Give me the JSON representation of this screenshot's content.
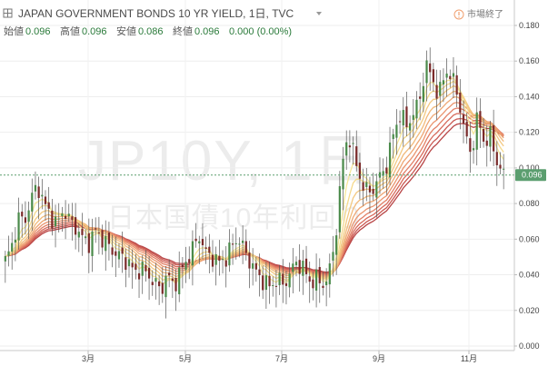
{
  "header": {
    "symbol_title": "JAPAN GOVERNMENT BONDS 10 YR YIELD, 1日, TVC",
    "dropdown_icon": "caret-down-icon",
    "collapse_icon": "grid-square-icon",
    "ohlc": [
      {
        "label": "始値",
        "value": "0.096"
      },
      {
        "label": "高値",
        "value": "0.096"
      },
      {
        "label": "安値",
        "value": "0.086"
      },
      {
        "label": "終値",
        "value": "0.096"
      }
    ],
    "change": "0.000 (0.00%)",
    "market_status": "市場終了",
    "status_icon": "exclamation-circle-icon",
    "status_color": "#f0a070",
    "positive_color": "#2a7a3a"
  },
  "watermark": {
    "symbol": "JP10Y, 1日",
    "description": "日本国債10年利回り"
  },
  "chart_data": {
    "type": "candlestick",
    "xlabels": [
      "3月",
      "5月",
      "7月",
      "9月",
      "11月"
    ],
    "yticks": [
      "0.180",
      "0.160",
      "0.140",
      "0.120",
      "0.100",
      "0.080",
      "0.060",
      "0.040",
      "0.020",
      "0.000"
    ],
    "ylim": [
      0.0,
      0.18
    ],
    "last_price": "0.096",
    "last_price_color": "#5b9e6f",
    "up_color": "#4a8a4a",
    "down_color": "#7a2a2a",
    "closes": [
      0.048,
      0.056,
      0.072,
      0.07,
      0.083,
      0.09,
      0.08,
      0.073,
      0.068,
      0.077,
      0.07,
      0.066,
      0.06,
      0.058,
      0.065,
      0.06,
      0.056,
      0.052,
      0.05,
      0.047,
      0.041,
      0.044,
      0.04,
      0.036,
      0.031,
      0.04,
      0.034,
      0.041,
      0.048,
      0.055,
      0.062,
      0.052,
      0.05,
      0.047,
      0.049,
      0.056,
      0.061,
      0.053,
      0.046,
      0.04,
      0.036,
      0.033,
      0.038,
      0.034,
      0.041,
      0.047,
      0.044,
      0.036,
      0.038,
      0.034,
      0.04,
      0.06,
      0.1,
      0.12,
      0.105,
      0.092,
      0.086,
      0.089,
      0.096,
      0.102,
      0.12,
      0.13,
      0.124,
      0.13,
      0.138,
      0.158,
      0.15,
      0.14,
      0.155,
      0.151,
      0.14,
      0.119,
      0.108,
      0.129,
      0.114,
      0.118,
      0.103,
      0.096
    ],
    "series": [
      {
        "name": "EMA 5",
        "color": "#f7e79a"
      },
      {
        "name": "EMA 8",
        "color": "#f5d98c"
      },
      {
        "name": "EMA 11",
        "color": "#f3c982"
      },
      {
        "name": "EMA 14",
        "color": "#f1b97a"
      },
      {
        "name": "EMA 17",
        "color": "#eea774"
      },
      {
        "name": "EMA 20",
        "color": "#ea946e"
      },
      {
        "name": "EMA 23",
        "color": "#e27f66"
      },
      {
        "name": "EMA 26",
        "color": "#d76b5c"
      },
      {
        "name": "EMA 29",
        "color": "#c95751"
      },
      {
        "name": "EMA 32",
        "color": "#b84546"
      }
    ]
  }
}
